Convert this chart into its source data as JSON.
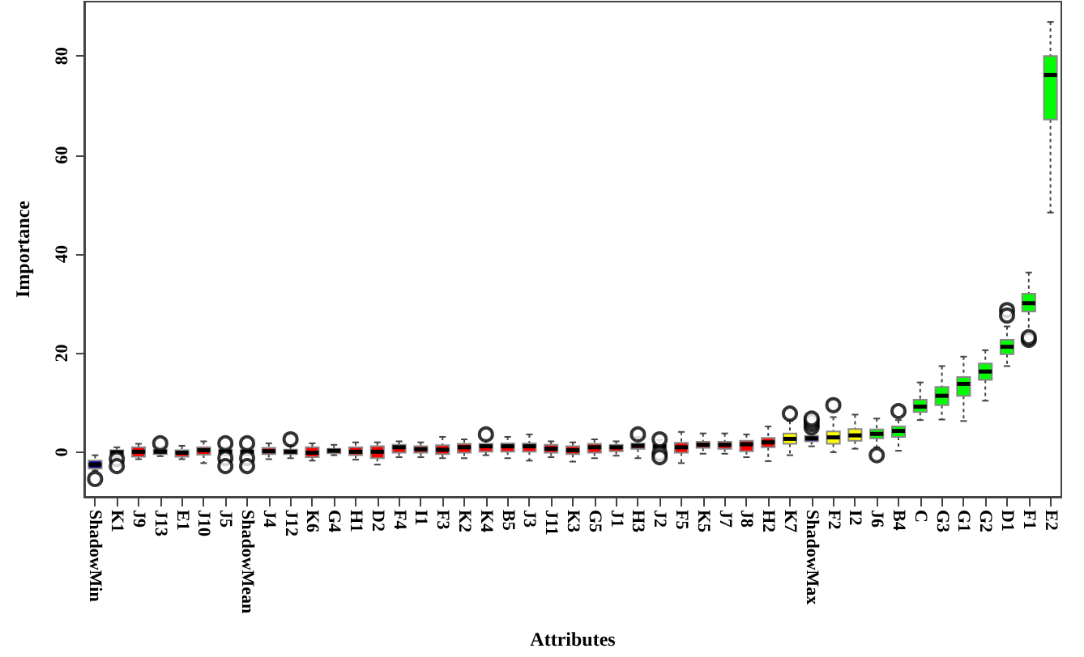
{
  "chart_data": {
    "type": "box",
    "xlabel": "Attributes",
    "ylabel": "Importance",
    "ylim": [
      -9,
      91
    ],
    "yticks": [
      0,
      20,
      40,
      60,
      80
    ],
    "categories": [
      "ShadowMin",
      "K1",
      "J9",
      "J13",
      "E1",
      "J10",
      "J5",
      "ShadowMean",
      "J4",
      "J12",
      "K6",
      "G4",
      "H1",
      "D2",
      "F4",
      "I1",
      "F3",
      "K2",
      "K4",
      "B5",
      "J3",
      "J11",
      "K3",
      "G5",
      "J1",
      "H3",
      "J2",
      "F5",
      "K5",
      "J7",
      "J8",
      "H2",
      "K7",
      "ShadowMax",
      "F2",
      "I2",
      "J6",
      "B4",
      "C",
      "G3",
      "G1",
      "G2",
      "D1",
      "F1",
      "E2"
    ],
    "colors": [
      "#0000a0",
      "#ff0000",
      "#ff0000",
      "#ff0000",
      "#ff0000",
      "#ff0000",
      "#ff0000",
      "#0000a0",
      "#ff0000",
      "#ff0000",
      "#ff0000",
      "#ff0000",
      "#ff0000",
      "#ff0000",
      "#ff0000",
      "#ff0000",
      "#ff0000",
      "#ff0000",
      "#ff0000",
      "#ff0000",
      "#ff0000",
      "#ff0000",
      "#ff0000",
      "#ff0000",
      "#ff0000",
      "#ff0000",
      "#ff0000",
      "#ff0000",
      "#ff0000",
      "#ff0000",
      "#ff0000",
      "#ff0000",
      "#ffff00",
      "#0000a0",
      "#ffff00",
      "#ffff00",
      "#00ff00",
      "#00ff00",
      "#00ff00",
      "#00ff00",
      "#00ff00",
      "#00ff00",
      "#00ff00",
      "#00ff00",
      "#00ff00"
    ],
    "boxes": [
      {
        "low": -3.7,
        "q1": -3.3,
        "median": -2.5,
        "q3": -1.7,
        "high": -0.6,
        "outliers": [
          -5.4
        ]
      },
      {
        "low": -1.0,
        "q1": -0.6,
        "median": 0.0,
        "q3": 0.4,
        "high": 1.0,
        "outliers": [
          -1.4,
          -2.8
        ]
      },
      {
        "low": -1.4,
        "q1": -0.9,
        "median": 0.1,
        "q3": 1.0,
        "high": 1.7
      },
      {
        "low": -0.8,
        "q1": -0.4,
        "median": 0.1,
        "q3": 0.5,
        "high": 1.0,
        "outliers": [
          1.8
        ]
      },
      {
        "low": -1.4,
        "q1": -0.9,
        "median": -0.1,
        "q3": 0.4,
        "high": 1.3
      },
      {
        "low": -2.2,
        "q1": -0.5,
        "median": 0.4,
        "q3": 1.0,
        "high": 2.2
      },
      {
        "low": -0.7,
        "q1": -0.3,
        "median": 0.1,
        "q3": 0.5,
        "high": 1.0,
        "outliers": [
          1.8,
          -1.2,
          -2.8
        ]
      },
      {
        "low": -0.6,
        "q1": -0.2,
        "median": 0.1,
        "q3": 0.4,
        "high": 0.8,
        "outliers": [
          1.8,
          -1.2,
          -2.8
        ]
      },
      {
        "low": -1.4,
        "q1": -0.4,
        "median": 0.2,
        "q3": 0.9,
        "high": 1.8
      },
      {
        "low": -1.2,
        "q1": -0.4,
        "median": 0.1,
        "q3": 0.5,
        "high": 1.3,
        "outliers": [
          2.6
        ]
      },
      {
        "low": -1.7,
        "q1": -1.0,
        "median": -0.1,
        "q3": 1.0,
        "high": 1.8
      },
      {
        "low": -0.6,
        "q1": -0.2,
        "median": 0.3,
        "q3": 0.7,
        "high": 1.5
      },
      {
        "low": -1.5,
        "q1": -0.6,
        "median": 0.1,
        "q3": 1.0,
        "high": 2.0
      },
      {
        "low": -2.5,
        "q1": -1.2,
        "median": 0.1,
        "q3": 1.2,
        "high": 2.0
      },
      {
        "low": -1.0,
        "q1": -0.1,
        "median": 1.0,
        "q3": 1.5,
        "high": 2.2
      },
      {
        "low": -1.0,
        "q1": -0.1,
        "median": 0.6,
        "q3": 1.2,
        "high": 2.0
      },
      {
        "low": -1.2,
        "q1": -0.4,
        "median": 0.5,
        "q3": 1.4,
        "high": 3.1
      },
      {
        "low": -1.2,
        "q1": -0.1,
        "median": 1.0,
        "q3": 1.7,
        "high": 2.6
      },
      {
        "low": -0.6,
        "q1": 0.1,
        "median": 1.2,
        "q3": 1.7,
        "high": 2.6,
        "outliers": [
          3.6
        ]
      },
      {
        "low": -1.2,
        "q1": 0.1,
        "median": 1.2,
        "q3": 1.8,
        "high": 3.1
      },
      {
        "low": -1.7,
        "q1": 0.1,
        "median": 1.2,
        "q3": 1.8,
        "high": 3.6
      },
      {
        "low": -1.0,
        "q1": -0.1,
        "median": 0.7,
        "q3": 1.5,
        "high": 2.2
      },
      {
        "low": -1.9,
        "q1": -0.4,
        "median": 0.4,
        "q3": 1.2,
        "high": 2.0
      },
      {
        "low": -1.2,
        "q1": -0.1,
        "median": 1.0,
        "q3": 1.7,
        "high": 2.6
      },
      {
        "low": -0.7,
        "q1": 0.2,
        "median": 1.0,
        "q3": 1.5,
        "high": 2.2
      },
      {
        "low": -1.2,
        "q1": 0.7,
        "median": 1.3,
        "q3": 1.8,
        "high": 3.1,
        "outliers": [
          3.6
        ]
      },
      {
        "low": 0.0,
        "q1": 0.7,
        "median": 1.2,
        "q3": 1.5,
        "high": 2.5,
        "outliers": [
          2.6,
          -0.3,
          -1.0
        ]
      },
      {
        "low": -2.2,
        "q1": -0.1,
        "median": 1.0,
        "q3": 1.9,
        "high": 4.1
      },
      {
        "low": -0.3,
        "q1": 0.9,
        "median": 1.5,
        "q3": 2.1,
        "high": 3.8
      },
      {
        "low": -0.3,
        "q1": 0.7,
        "median": 1.5,
        "q3": 2.1,
        "high": 3.8
      },
      {
        "low": -1.0,
        "q1": 0.2,
        "median": 1.6,
        "q3": 2.3,
        "high": 3.6
      },
      {
        "low": -1.8,
        "q1": 1.0,
        "median": 2.0,
        "q3": 2.9,
        "high": 5.2
      },
      {
        "low": -0.6,
        "q1": 1.7,
        "median": 2.7,
        "q3": 3.8,
        "high": 6.3,
        "outliers": [
          7.8
        ]
      },
      {
        "low": 1.2,
        "q1": 2.2,
        "median": 2.8,
        "q3": 3.3,
        "high": 4.4,
        "outliers": [
          5.0,
          5.7,
          6.3,
          6.8
        ]
      },
      {
        "low": 0.0,
        "q1": 1.7,
        "median": 3.0,
        "q3": 4.2,
        "high": 7.1,
        "outliers": [
          9.5
        ]
      },
      {
        "low": 0.7,
        "q1": 2.3,
        "median": 3.4,
        "q3": 4.7,
        "high": 7.6
      },
      {
        "low": 1.0,
        "q1": 2.8,
        "median": 3.7,
        "q3": 4.6,
        "high": 6.8,
        "outliers": [
          -0.6
        ]
      },
      {
        "low": 0.3,
        "q1": 3.1,
        "median": 4.3,
        "q3": 5.2,
        "high": 6.5,
        "outliers": [
          8.3
        ]
      },
      {
        "low": 6.5,
        "q1": 8.1,
        "median": 9.2,
        "q3": 10.6,
        "high": 14.1
      },
      {
        "low": 6.6,
        "q1": 9.5,
        "median": 11.4,
        "q3": 13.2,
        "high": 17.4
      },
      {
        "low": 6.3,
        "q1": 11.4,
        "median": 13.8,
        "q3": 15.2,
        "high": 19.3
      },
      {
        "low": 10.4,
        "q1": 14.6,
        "median": 16.3,
        "q3": 17.9,
        "high": 20.6
      },
      {
        "low": 17.4,
        "q1": 19.8,
        "median": 21.3,
        "q3": 22.7,
        "high": 25.4,
        "outliers": [
          28.7,
          27.6
        ]
      },
      {
        "low": 24.1,
        "q1": 28.4,
        "median": 30.1,
        "q3": 32.0,
        "high": 36.3,
        "outliers": [
          22.7,
          23.2
        ]
      },
      {
        "low": 48.4,
        "q1": 67.2,
        "median": 76.2,
        "q3": 80.0,
        "high": 86.9
      }
    ]
  }
}
